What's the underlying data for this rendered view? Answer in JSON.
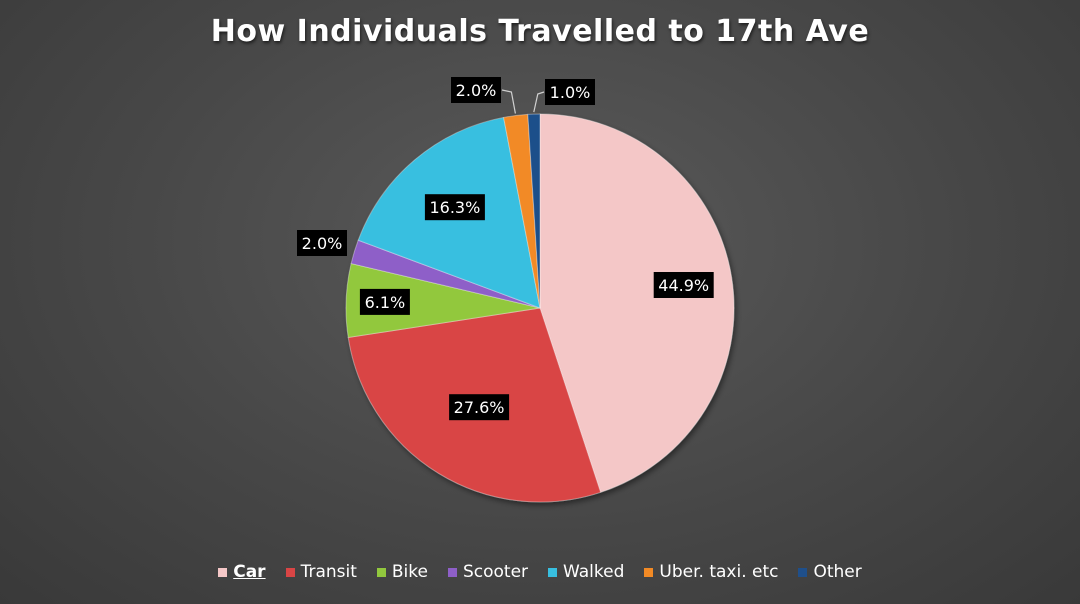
{
  "chart_data": {
    "type": "pie",
    "title": "How Individuals Travelled to 17th Ave",
    "categories": [
      "Car",
      "Transit",
      "Bike",
      "Scooter",
      "Walked",
      "Uber. taxi. etc",
      "Other"
    ],
    "values": [
      44.9,
      27.6,
      6.1,
      2.0,
      16.3,
      2.0,
      1.0
    ],
    "labels": [
      "44.9%",
      "27.6%",
      "6.1%",
      "2.0%",
      "16.3%",
      "2.0%",
      "1.0%"
    ],
    "colors": [
      "#f4c7c7",
      "#d94545",
      "#92c83e",
      "#8e5fc8",
      "#38bfe0",
      "#f28a25",
      "#1f4f8a"
    ],
    "legend_position": "bottom",
    "selected_legend_item": "Car"
  }
}
